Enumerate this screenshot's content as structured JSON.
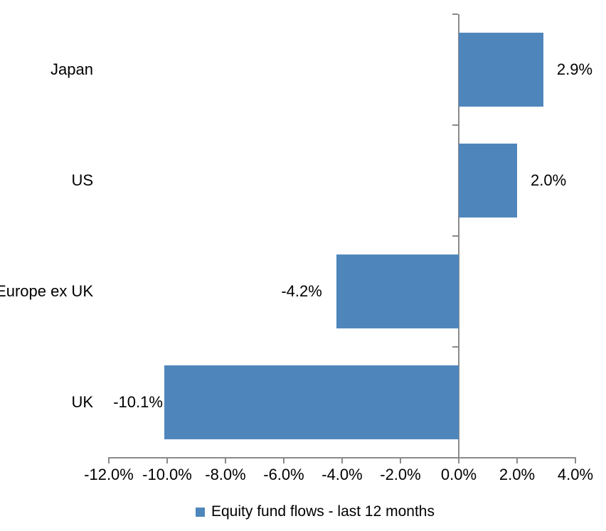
{
  "chart_data": {
    "type": "bar",
    "orientation": "horizontal",
    "title": "",
    "series_name": "Equity fund flows - last 12 months",
    "categories": [
      "Japan",
      "US",
      "Europe ex UK",
      "UK"
    ],
    "values": [
      2.9,
      2.0,
      -4.2,
      -10.1
    ],
    "data_labels": [
      "2.9%",
      "2.0%",
      "-4.2%",
      "-10.1%"
    ],
    "x_ticks": [
      -12,
      -10,
      -8,
      -6,
      -4,
      -2,
      0,
      2,
      4
    ],
    "x_tick_labels": [
      "-12.0%",
      "-10.0%",
      "-8.0%",
      "-6.0%",
      "-4.0%",
      "-2.0%",
      "0.0%",
      "2.0%",
      "4.0%"
    ],
    "xlim": [
      -12,
      4
    ],
    "grid": "off",
    "legend_position": "bottom",
    "colors": {
      "bar": "#4E86BC",
      "axis": "#8A8A8A",
      "text": "#000000",
      "background": "#FFFFFF"
    }
  }
}
